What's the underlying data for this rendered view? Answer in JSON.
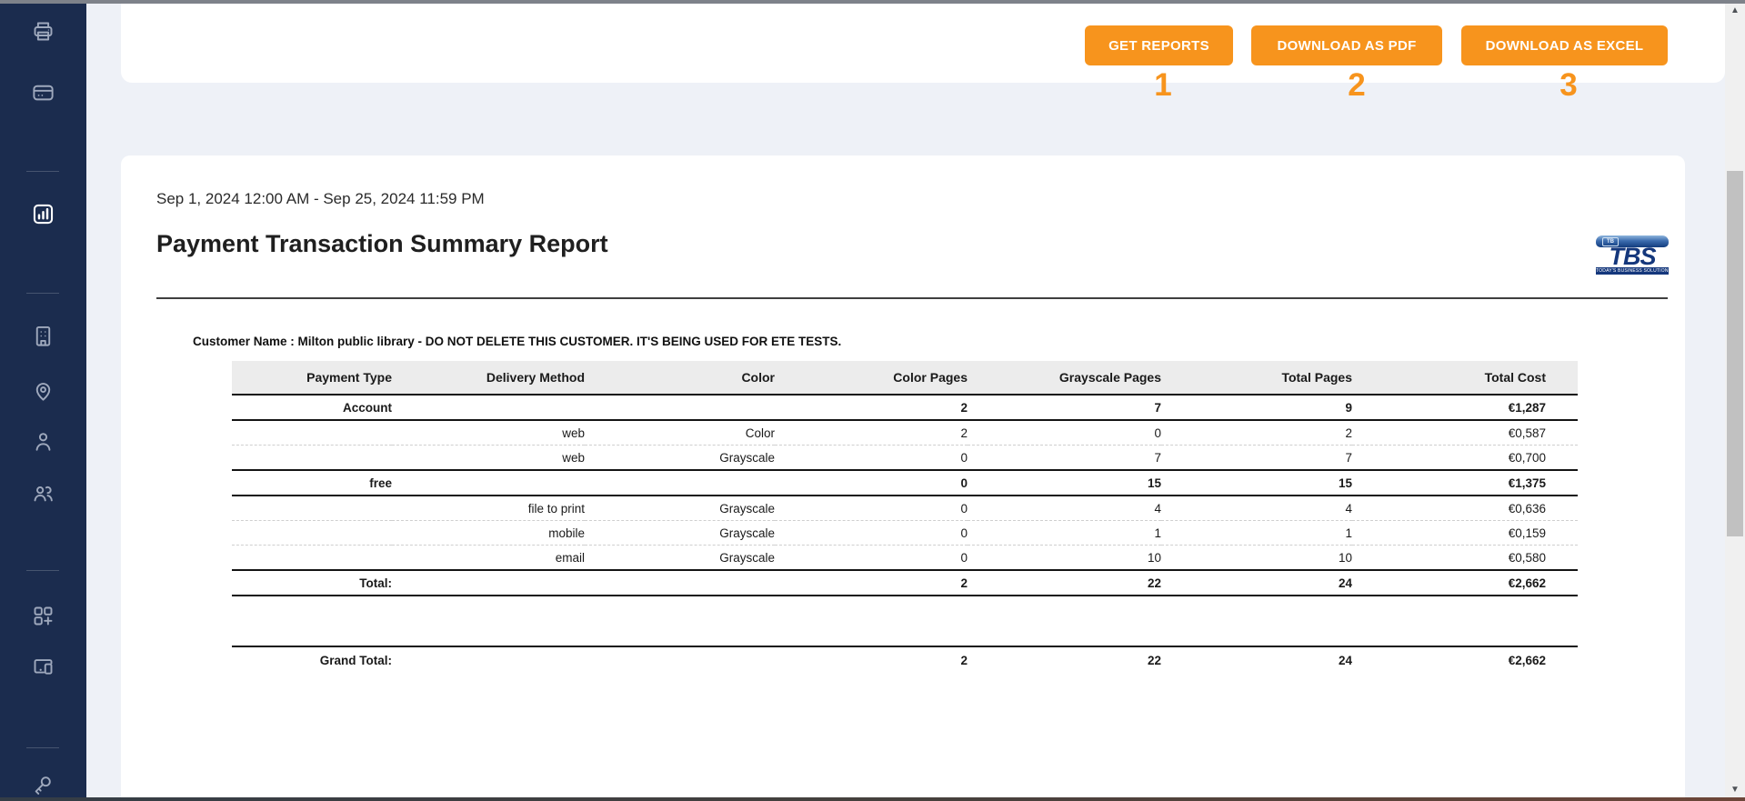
{
  "toolbar": {
    "buttons": [
      {
        "label": "GET REPORTS",
        "badge": "1"
      },
      {
        "label": "DOWNLOAD AS PDF",
        "badge": "2"
      },
      {
        "label": "DOWNLOAD AS EXCEL",
        "badge": "3"
      }
    ],
    "accent_color": "#f7941d"
  },
  "sidebar": {
    "color": "#1b2c4e",
    "active_item": "reports",
    "icons": [
      "printer",
      "credit-card",
      "bar-chart",
      "building",
      "location-pin",
      "person",
      "people",
      "apps-plus",
      "devices",
      "key"
    ]
  },
  "report": {
    "date_range": "Sep 1, 2024 12:00 AM - Sep 25, 2024 11:59 PM",
    "title": "Payment Transaction Summary Report",
    "logo": {
      "chip": "TB",
      "word": "TBS",
      "subtext": "TODAY'S BUSINESS SOLUTIONS, INC."
    },
    "customer_line": "Customer Name : Milton public library - DO NOT DELETE THIS CUSTOMER. IT'S BEING USED FOR ETE TESTS.",
    "table": {
      "columns": [
        "Payment Type",
        "Delivery Method",
        "Color",
        "Color Pages",
        "Grayscale Pages",
        "Total Pages",
        "Total Cost"
      ],
      "rows": [
        {
          "style": "group",
          "divider": "solid",
          "cells": [
            "Account",
            "",
            "",
            "2",
            "7",
            "9",
            "€1,287"
          ]
        },
        {
          "style": "detail",
          "divider": "dashed",
          "cells": [
            "",
            "web",
            "Color",
            "2",
            "0",
            "2",
            "€0,587"
          ]
        },
        {
          "style": "detail",
          "divider": "solid",
          "cells": [
            "",
            "web",
            "Grayscale",
            "0",
            "7",
            "7",
            "€0,700"
          ]
        },
        {
          "style": "group",
          "divider": "solid",
          "cells": [
            "free",
            "",
            "",
            "0",
            "15",
            "15",
            "€1,375"
          ]
        },
        {
          "style": "detail",
          "divider": "dashed",
          "cells": [
            "",
            "file to print",
            "Grayscale",
            "0",
            "4",
            "4",
            "€0,636"
          ]
        },
        {
          "style": "detail",
          "divider": "dashed",
          "cells": [
            "",
            "mobile",
            "Grayscale",
            "0",
            "1",
            "1",
            "€0,159"
          ]
        },
        {
          "style": "detail",
          "divider": "solid",
          "cells": [
            "",
            "email",
            "Grayscale",
            "0",
            "10",
            "10",
            "€0,580"
          ]
        },
        {
          "style": "total",
          "divider": "solid",
          "cells": [
            "Total:",
            "",
            "",
            "2",
            "22",
            "24",
            "€2,662"
          ]
        }
      ],
      "grand_total": {
        "cells": [
          "Grand Total:",
          "",
          "",
          "2",
          "22",
          "24",
          "€2,662"
        ]
      }
    }
  },
  "scrollbar": {
    "up": "▲",
    "down": "▼"
  }
}
